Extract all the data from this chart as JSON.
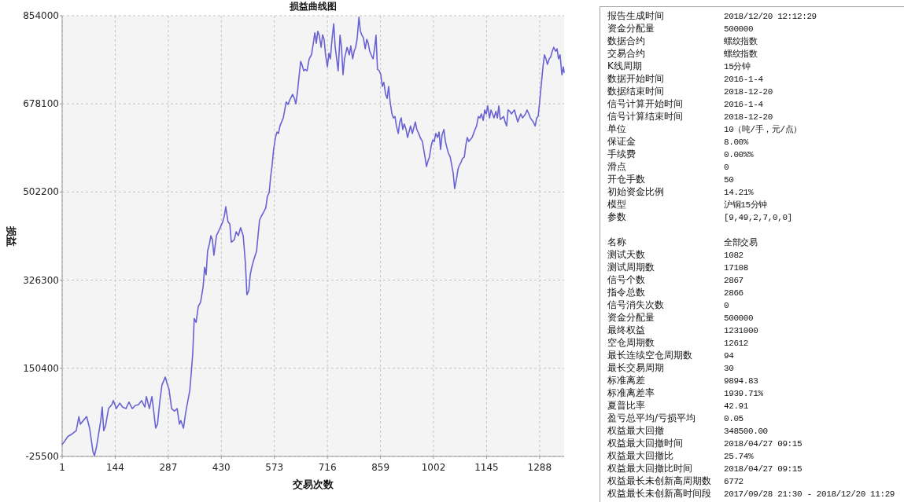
{
  "chart_data": [
    {
      "type": "line",
      "title": "损益曲线图",
      "xlabel": "交易次数",
      "ylabel": "损益",
      "xlim": [
        1,
        1354
      ],
      "xticks": [
        1,
        144,
        287,
        430,
        573,
        716,
        859,
        1002,
        1145,
        1288
      ],
      "ylim": [
        -25500,
        854000
      ],
      "yticks": [
        -25500,
        150400,
        326300,
        502200,
        678100,
        854000
      ],
      "grid": true,
      "series": [
        {
          "color": "#6a62d4",
          "x": [
            1,
            7,
            16,
            29,
            39,
            46,
            50,
            58,
            67,
            75,
            84,
            88,
            94,
            105,
            109,
            113,
            118,
            126,
            135,
            139,
            147,
            156,
            164,
            173,
            181,
            190,
            198,
            207,
            215,
            224,
            228,
            236,
            243,
            249,
            253,
            258,
            264,
            270,
            279,
            283,
            289,
            296,
            304,
            311,
            317,
            321,
            328,
            334,
            340,
            345,
            349,
            353,
            357,
            362,
            368,
            374,
            381,
            385,
            389,
            393,
            398,
            402,
            406,
            410,
            417,
            427,
            434,
            438,
            442,
            448,
            453,
            457,
            465,
            470,
            476,
            482,
            489,
            495,
            499,
            504,
            508,
            512,
            518,
            525,
            529,
            533,
            538,
            544,
            550,
            554,
            559,
            563,
            567,
            571,
            576,
            580,
            584,
            588,
            597,
            601,
            605,
            610,
            614,
            622,
            627,
            631,
            635,
            639,
            644,
            648,
            652,
            656,
            661,
            667,
            673,
            678,
            682,
            686,
            690,
            694,
            699,
            703,
            707,
            711,
            716,
            720,
            724,
            728,
            733,
            737,
            741,
            745,
            750,
            754,
            758,
            762,
            769,
            775,
            779,
            784,
            788,
            792,
            796,
            801,
            805,
            809,
            813,
            818,
            822,
            826,
            830,
            834,
            839,
            843,
            847,
            851,
            856,
            860,
            864,
            868,
            873,
            877,
            881,
            885,
            890,
            894,
            898,
            902,
            907,
            911,
            915,
            919,
            923,
            928,
            932,
            936,
            940,
            945,
            949,
            953,
            957,
            962,
            966,
            972,
            979,
            983,
            987,
            991,
            996,
            1000,
            1004,
            1008,
            1013,
            1017,
            1021,
            1025,
            1030,
            1034,
            1038,
            1042,
            1047,
            1051,
            1055,
            1059,
            1064,
            1068,
            1072,
            1076,
            1080,
            1085,
            1089,
            1093,
            1097,
            1106,
            1110,
            1114,
            1118,
            1123,
            1127,
            1131,
            1136,
            1140,
            1144,
            1148,
            1153,
            1157,
            1161,
            1165,
            1170,
            1174,
            1178,
            1182,
            1187,
            1191,
            1195,
            1199,
            1203,
            1208,
            1212,
            1220,
            1229,
            1233,
            1237,
            1242,
            1250,
            1254,
            1259,
            1263,
            1271,
            1276,
            1280,
            1284,
            1288,
            1292,
            1297,
            1301,
            1305,
            1309,
            1314,
            1318,
            1322,
            1326,
            1331,
            1335,
            1339,
            1343,
            1348,
            1352,
            1354
          ],
          "values": [
            -1000,
            4000,
            14000,
            20000,
            26000,
            54000,
            39000,
            46000,
            54000,
            31000,
            -16000,
            -24000,
            -5000,
            46000,
            73000,
            26000,
            36000,
            70000,
            78000,
            86000,
            70000,
            81000,
            73000,
            70000,
            83000,
            70000,
            76000,
            78000,
            86000,
            73000,
            94000,
            70000,
            94000,
            57000,
            31000,
            39000,
            83000,
            117000,
            133000,
            122000,
            109000,
            70000,
            65000,
            70000,
            39000,
            46000,
            31000,
            62000,
            86000,
            106000,
            141000,
            180000,
            250000,
            242000,
            274000,
            282000,
            313000,
            352000,
            337000,
            384000,
            399000,
            415000,
            407000,
            376000,
            415000,
            431000,
            443000,
            454000,
            473000,
            443000,
            438000,
            402000,
            407000,
            423000,
            415000,
            431000,
            415000,
            360000,
            297000,
            305000,
            337000,
            352000,
            368000,
            384000,
            415000,
            446000,
            454000,
            462000,
            471000,
            493000,
            501000,
            533000,
            556000,
            587000,
            611000,
            622000,
            619000,
            634000,
            650000,
            666000,
            682000,
            677000,
            685000,
            697000,
            689000,
            678000,
            700000,
            729000,
            763000,
            755000,
            744000,
            747000,
            744000,
            768000,
            776000,
            799000,
            820000,
            799000,
            823000,
            815000,
            791000,
            816000,
            807000,
            776000,
            752000,
            779000,
            768000,
            804000,
            838000,
            791000,
            768000,
            744000,
            815000,
            791000,
            736000,
            768000,
            791000,
            776000,
            794000,
            768000,
            783000,
            791000,
            807000,
            851000,
            823000,
            815000,
            810000,
            788000,
            807000,
            799000,
            783000,
            776000,
            768000,
            788000,
            815000,
            747000,
            744000,
            736000,
            713000,
            721000,
            697000,
            689000,
            713000,
            682000,
            658000,
            650000,
            653000,
            634000,
            619000,
            642000,
            650000,
            627000,
            638000,
            627000,
            611000,
            622000,
            634000,
            619000,
            631000,
            642000,
            627000,
            619000,
            611000,
            603000,
            572000,
            553000,
            564000,
            572000,
            595000,
            606000,
            603000,
            619000,
            611000,
            622000,
            587000,
            616000,
            627000,
            603000,
            591000,
            580000,
            572000,
            556000,
            540000,
            509000,
            528000,
            548000,
            556000,
            561000,
            569000,
            572000,
            595000,
            611000,
            603000,
            611000,
            619000,
            627000,
            634000,
            653000,
            650000,
            658000,
            645000,
            666000,
            658000,
            674000,
            650000,
            666000,
            658000,
            650000,
            663000,
            650000,
            674000,
            647000,
            650000,
            653000,
            642000,
            634000,
            666000,
            663000,
            658000,
            666000,
            642000,
            650000,
            658000,
            650000,
            658000,
            666000,
            658000,
            650000,
            642000,
            634000,
            650000,
            653000,
            682000,
            713000,
            752000,
            776000,
            768000,
            757000,
            768000,
            772000,
            783000,
            791000,
            783000,
            788000,
            768000,
            776000,
            736000,
            752000,
            741000
          ]
        }
      ]
    },
    {
      "type": "other",
      "annotations": [
        "报告生成时间",
        "2018/12/20 12:12:29",
        "资金分配量",
        "500000",
        "数据合约",
        "螺纹指数",
        "交易合约",
        "螺纹指数",
        "K线周期",
        "15分钟",
        "数据开始时间",
        "2016-1-4",
        "数据结束时间",
        "2018-12-20",
        "信号计算开始时间",
        "2016-1-4",
        "信号计算结束时间",
        "2018-12-20",
        "单位",
        "10（吨/手，元/点）",
        "保证金",
        "8.00%",
        "手续费",
        "0.00%%",
        "滑点",
        "0",
        "开仓手数",
        "50",
        "初始资金比例",
        "14.21%",
        "模型",
        "沪铜15分钟",
        "参数",
        "[9,49,2,7,0,0]",
        "名称",
        "全部交易",
        "测试天数",
        "1082",
        "测试周期数",
        "17108",
        "信号个数",
        "2867",
        "指令总数",
        "2866",
        "信号消失次数",
        "0",
        "资金分配量",
        "500000",
        "最终权益",
        "1231000",
        "空仓周期数",
        "12612",
        "最长连续空仓周期数",
        "94",
        "最长交易周期",
        "30",
        "标准离差",
        "9894.83",
        "标准离差率",
        "1939.71%",
        "夏普比率",
        "42.91",
        "盈亏总平均/亏损平均",
        "0.05",
        "权益最大回撤",
        "348500.00",
        "权益最大回撤时间",
        "2018/04/27 09:15",
        "权益最大回撤比",
        "25.74%",
        "权益最大回撤比时间",
        "2018/04/27 09:15",
        "权益最长未创新高周期数",
        "6772",
        "权益最长未创新高时间段",
        "2017/09/28 21:30 - 2018/12/20 11:29"
      ]
    }
  ]
}
